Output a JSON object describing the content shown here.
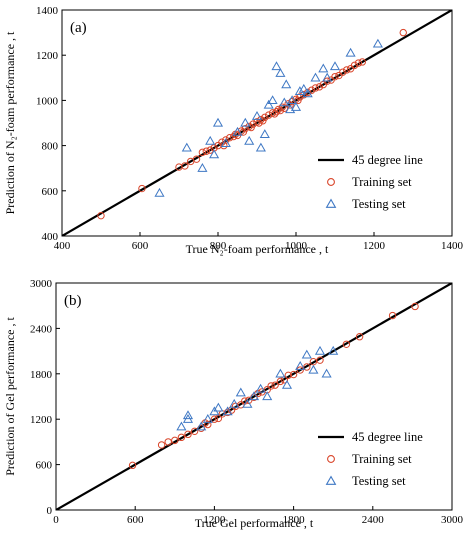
{
  "colors": {
    "line": "#000000",
    "train": "#d9452a",
    "test": "#3f78c4"
  },
  "legend_labels": [
    "45 degree line",
    "Training set",
    "Testing set"
  ],
  "chart_data": [
    {
      "type": "scatter",
      "panel_label": "(a)",
      "xlabel": "True N₂-foam performance , t",
      "ylabel": "Prediction of N₂-foam performance , t",
      "xlim": [
        400,
        1400
      ],
      "ylim": [
        400,
        1400
      ],
      "xticks": [
        400,
        600,
        800,
        1000,
        1200,
        1400
      ],
      "yticks": [
        400,
        600,
        800,
        1000,
        1200,
        1400
      ],
      "grid": false,
      "legend_position": "bottom-right",
      "series": [
        {
          "name": "45 degree line",
          "kind": "line",
          "x": [
            400,
            1400
          ],
          "y": [
            400,
            1400
          ]
        },
        {
          "name": "Training set",
          "kind": "scatter",
          "marker": "circle",
          "x": [
            500,
            605,
            700,
            715,
            730,
            745,
            760,
            770,
            780,
            790,
            800,
            810,
            815,
            820,
            830,
            840,
            845,
            850,
            860,
            865,
            870,
            880,
            885,
            890,
            900,
            905,
            910,
            915,
            920,
            930,
            940,
            945,
            950,
            955,
            960,
            965,
            970,
            980,
            985,
            990,
            1000,
            1005,
            1010,
            1020,
            1030,
            1040,
            1050,
            1060,
            1070,
            1080,
            1090,
            1100,
            1110,
            1120,
            1130,
            1140,
            1150,
            1160,
            1170,
            1275
          ],
          "y": [
            490,
            610,
            705,
            710,
            730,
            740,
            770,
            775,
            780,
            790,
            800,
            815,
            800,
            825,
            835,
            840,
            850,
            845,
            865,
            860,
            875,
            885,
            880,
            895,
            905,
            900,
            915,
            910,
            925,
            935,
            945,
            940,
            950,
            960,
            955,
            970,
            965,
            985,
            980,
            995,
            1005,
            1000,
            1015,
            1025,
            1035,
            1045,
            1055,
            1060,
            1070,
            1085,
            1090,
            1105,
            1110,
            1125,
            1135,
            1140,
            1155,
            1165,
            1170,
            1300
          ]
        },
        {
          "name": "Testing set",
          "kind": "scatter",
          "marker": "triangle",
          "x": [
            650,
            720,
            760,
            780,
            790,
            800,
            820,
            850,
            870,
            880,
            900,
            910,
            920,
            930,
            940,
            950,
            960,
            970,
            975,
            985,
            990,
            1000,
            1010,
            1020,
            1030,
            1050,
            1070,
            1080,
            1100,
            1140,
            1210
          ],
          "y": [
            590,
            790,
            700,
            820,
            760,
            900,
            810,
            860,
            900,
            820,
            930,
            790,
            850,
            980,
            1000,
            1150,
            1120,
            990,
            1070,
            960,
            1000,
            970,
            1040,
            1050,
            1030,
            1100,
            1140,
            1100,
            1150,
            1210,
            1250
          ]
        }
      ]
    },
    {
      "type": "scatter",
      "panel_label": "(b)",
      "xlabel": "True Gel performance , t",
      "ylabel": "Prediction of Gel performance , t",
      "xlim": [
        0,
        3000
      ],
      "ylim": [
        0,
        3000
      ],
      "xticks": [
        0,
        600,
        1200,
        1800,
        2400,
        3000
      ],
      "yticks": [
        0,
        600,
        1200,
        1800,
        2400,
        3000
      ],
      "grid": false,
      "legend_position": "bottom-right",
      "series": [
        {
          "name": "45 degree line",
          "kind": "line",
          "x": [
            0,
            3000
          ],
          "y": [
            0,
            3000
          ]
        },
        {
          "name": "Training set",
          "kind": "scatter",
          "marker": "circle",
          "x": [
            580,
            800,
            850,
            900,
            950,
            1000,
            1050,
            1100,
            1130,
            1150,
            1200,
            1230,
            1260,
            1300,
            1330,
            1360,
            1400,
            1430,
            1460,
            1500,
            1530,
            1560,
            1600,
            1630,
            1660,
            1700,
            1730,
            1760,
            1800,
            1850,
            1900,
            1950,
            2000,
            2200,
            2300,
            2550,
            2720
          ],
          "y": [
            590,
            860,
            900,
            920,
            960,
            1000,
            1040,
            1080,
            1150,
            1130,
            1200,
            1210,
            1270,
            1290,
            1320,
            1370,
            1390,
            1440,
            1450,
            1490,
            1540,
            1560,
            1590,
            1640,
            1650,
            1700,
            1720,
            1780,
            1790,
            1850,
            1890,
            1960,
            1980,
            2190,
            2290,
            2570,
            2690
          ]
        },
        {
          "name": "Testing set",
          "kind": "scatter",
          "marker": "triangle",
          "x": [
            950,
            1000,
            1000,
            1100,
            1150,
            1200,
            1230,
            1300,
            1350,
            1400,
            1450,
            1500,
            1550,
            1600,
            1700,
            1750,
            1850,
            1900,
            1950,
            2000,
            2050,
            2100
          ],
          "y": [
            1100,
            1200,
            1250,
            1100,
            1200,
            1300,
            1350,
            1300,
            1400,
            1550,
            1400,
            1500,
            1600,
            1500,
            1800,
            1650,
            1900,
            2050,
            1850,
            2100,
            1800,
            2100
          ]
        }
      ]
    }
  ]
}
